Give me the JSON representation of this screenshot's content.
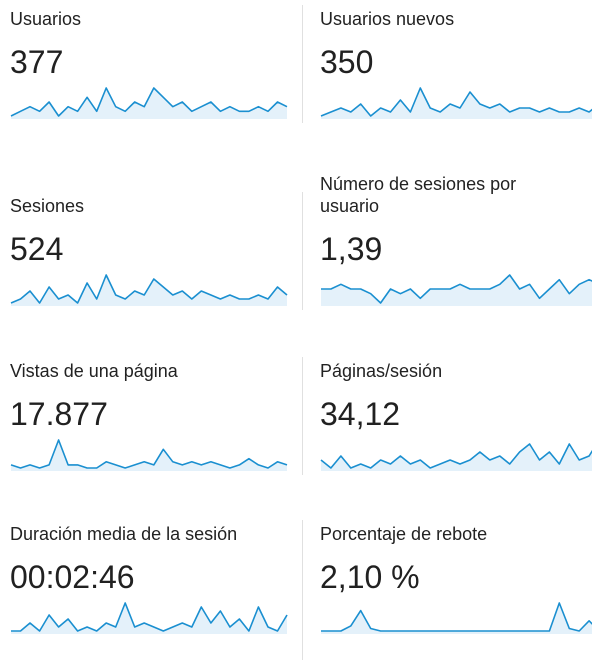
{
  "metrics": [
    {
      "title": "Usuarios",
      "value": "377",
      "sparkline": [
        3,
        4,
        5,
        4,
        6,
        3,
        5,
        4,
        7,
        4,
        9,
        5,
        4,
        6,
        5,
        9,
        7,
        5,
        6,
        4,
        5,
        6,
        4,
        5,
        4,
        4,
        5,
        4,
        6,
        5
      ]
    },
    {
      "title": "Usuarios nuevos",
      "value": "350",
      "sparkline": [
        3,
        4,
        5,
        4,
        6,
        3,
        5,
        4,
        7,
        4,
        10,
        5,
        4,
        6,
        5,
        9,
        6,
        5,
        6,
        4,
        5,
        5,
        4,
        5,
        4,
        4,
        5,
        4,
        6,
        5
      ]
    },
    {
      "title": "Sesiones",
      "value": "524",
      "sparkline": [
        3,
        4,
        6,
        3,
        7,
        4,
        5,
        3,
        8,
        4,
        10,
        5,
        4,
        6,
        5,
        9,
        7,
        5,
        6,
        4,
        6,
        5,
        4,
        5,
        4,
        4,
        5,
        4,
        7,
        5
      ]
    },
    {
      "title": "Número de sesiones por usuario",
      "value": "1,39",
      "sparkline": [
        5,
        5,
        6,
        5,
        5,
        4,
        2,
        5,
        4,
        5,
        3,
        5,
        5,
        5,
        6,
        5,
        5,
        5,
        6,
        8,
        5,
        6,
        3,
        5,
        7,
        4,
        6,
        7,
        6,
        5
      ]
    },
    {
      "title": "Vistas de una página",
      "value": "17.877",
      "sparkline": [
        4,
        3,
        4,
        3,
        4,
        12,
        4,
        4,
        3,
        3,
        5,
        4,
        3,
        4,
        5,
        4,
        9,
        5,
        4,
        5,
        4,
        5,
        4,
        3,
        4,
        6,
        4,
        3,
        5,
        4
      ]
    },
    {
      "title": "Páginas/sesión",
      "value": "34,12",
      "sparkline": [
        6,
        4,
        7,
        4,
        5,
        4,
        6,
        5,
        7,
        5,
        6,
        4,
        5,
        6,
        5,
        6,
        8,
        6,
        7,
        5,
        8,
        10,
        6,
        8,
        5,
        10,
        6,
        7,
        11,
        6
      ]
    },
    {
      "title": "Duración media de la sesión",
      "value": "00:02:46",
      "sparkline": [
        3,
        3,
        5,
        3,
        7,
        4,
        6,
        3,
        4,
        3,
        5,
        4,
        10,
        4,
        5,
        4,
        3,
        4,
        5,
        4,
        9,
        5,
        8,
        4,
        6,
        3,
        9,
        4,
        3,
        7
      ]
    },
    {
      "title": "Porcentaje de rebote",
      "value": "2,10 %",
      "sparkline": [
        0,
        0,
        0,
        2,
        8,
        1,
        0,
        0,
        0,
        0,
        0,
        0,
        0,
        0,
        0,
        0,
        0,
        0,
        0,
        0,
        0,
        0,
        0,
        0,
        11,
        1,
        0,
        4,
        0,
        0
      ]
    }
  ]
}
